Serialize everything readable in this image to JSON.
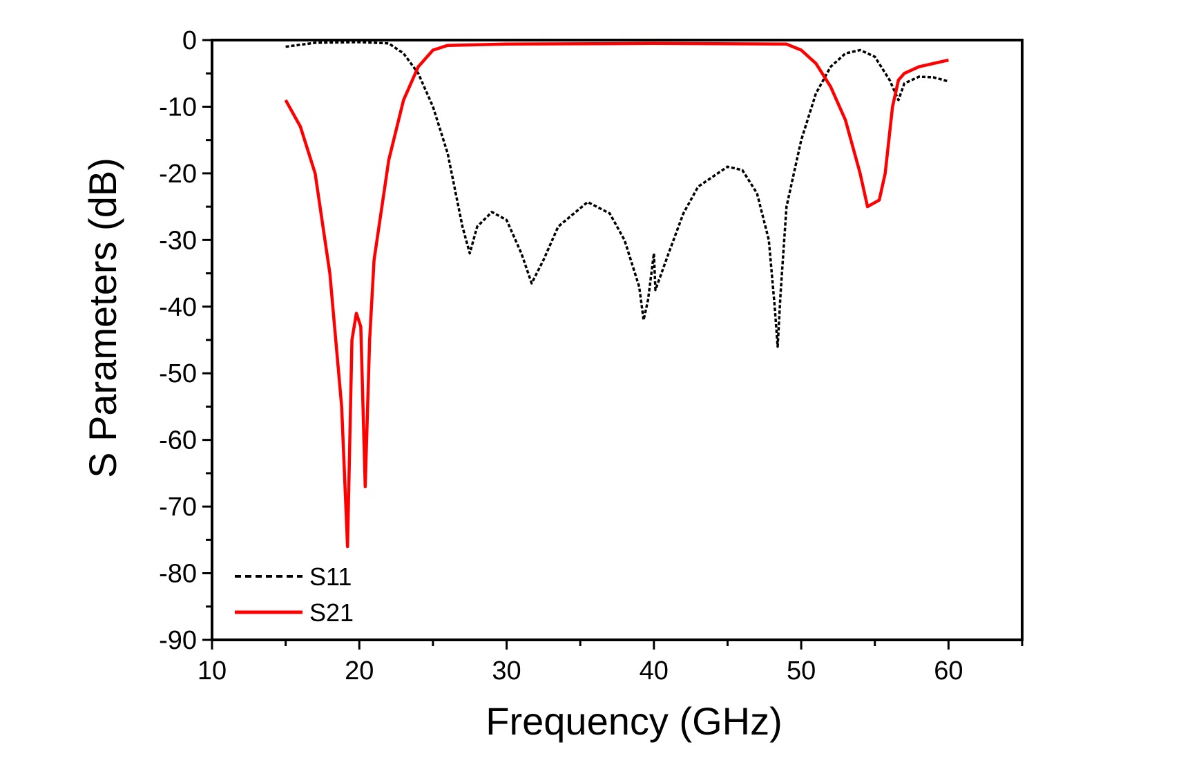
{
  "chart_data": {
    "type": "line",
    "title": "",
    "xlabel": "Frequency (GHz)",
    "ylabel": "S Parameters (dB)",
    "xlim": [
      10,
      65
    ],
    "ylim": [
      -90,
      0
    ],
    "xticks": [
      10,
      20,
      30,
      40,
      50,
      60
    ],
    "yticks": [
      0,
      -10,
      -20,
      -30,
      -40,
      -50,
      -60,
      -70,
      -80,
      -90
    ],
    "xtick_labels": [
      "10",
      "20",
      "30",
      "40",
      "50",
      "60"
    ],
    "ytick_labels": [
      "0",
      "-10",
      "-20",
      "-30",
      "-40",
      "-50",
      "-60",
      "-70",
      "-80",
      "-90"
    ],
    "grid": false,
    "legend_position": "bottom-left",
    "series": [
      {
        "name": "S11",
        "color": "#000000",
        "style": "dashed",
        "x": [
          15,
          17,
          20,
          22,
          23,
          24,
          25,
          26,
          27,
          27.5,
          28,
          29,
          30,
          31,
          31.7,
          32.5,
          33.5,
          35.5,
          37,
          38,
          39,
          39.3,
          39.6,
          40,
          40.1,
          41,
          42,
          43,
          45,
          46,
          47,
          47.8,
          48.2,
          48.4,
          48.6,
          49,
          50,
          51,
          52,
          53,
          54,
          55,
          56,
          56.6,
          57,
          58,
          59,
          60
        ],
        "y": [
          -1,
          -0.4,
          -0.3,
          -0.5,
          -2,
          -5,
          -10,
          -17,
          -28,
          -32,
          -28,
          -25.8,
          -27,
          -32,
          -36.5,
          -33,
          -28,
          -24.3,
          -26,
          -30,
          -37,
          -42,
          -39,
          -32,
          -37.5,
          -32,
          -26,
          -22,
          -19,
          -19.5,
          -23,
          -30,
          -40,
          -46,
          -38,
          -25,
          -15,
          -8,
          -4,
          -2,
          -1.5,
          -2.5,
          -6,
          -9,
          -6.5,
          -5.5,
          -5.6,
          -6.2
        ]
      },
      {
        "name": "S21",
        "color": "#ff0000",
        "style": "solid",
        "x": [
          15,
          16,
          17,
          18,
          18.8,
          19.2,
          19.5,
          19.8,
          20.1,
          20.4,
          20.7,
          21,
          22,
          23,
          24,
          25,
          26,
          30,
          40,
          49,
          50,
          51,
          52,
          53,
          54,
          54.5,
          55.3,
          55.7,
          56.2,
          56.6,
          57,
          58,
          60
        ],
        "y": [
          -9,
          -13,
          -20,
          -35,
          -55,
          -76,
          -45,
          -41,
          -43,
          -67,
          -45,
          -33,
          -18,
          -9,
          -4,
          -1.5,
          -0.8,
          -0.6,
          -0.5,
          -0.6,
          -1.5,
          -3.5,
          -7,
          -12,
          -20,
          -25,
          -24,
          -20,
          -10,
          -6,
          -5,
          -4,
          -3
        ]
      }
    ]
  }
}
